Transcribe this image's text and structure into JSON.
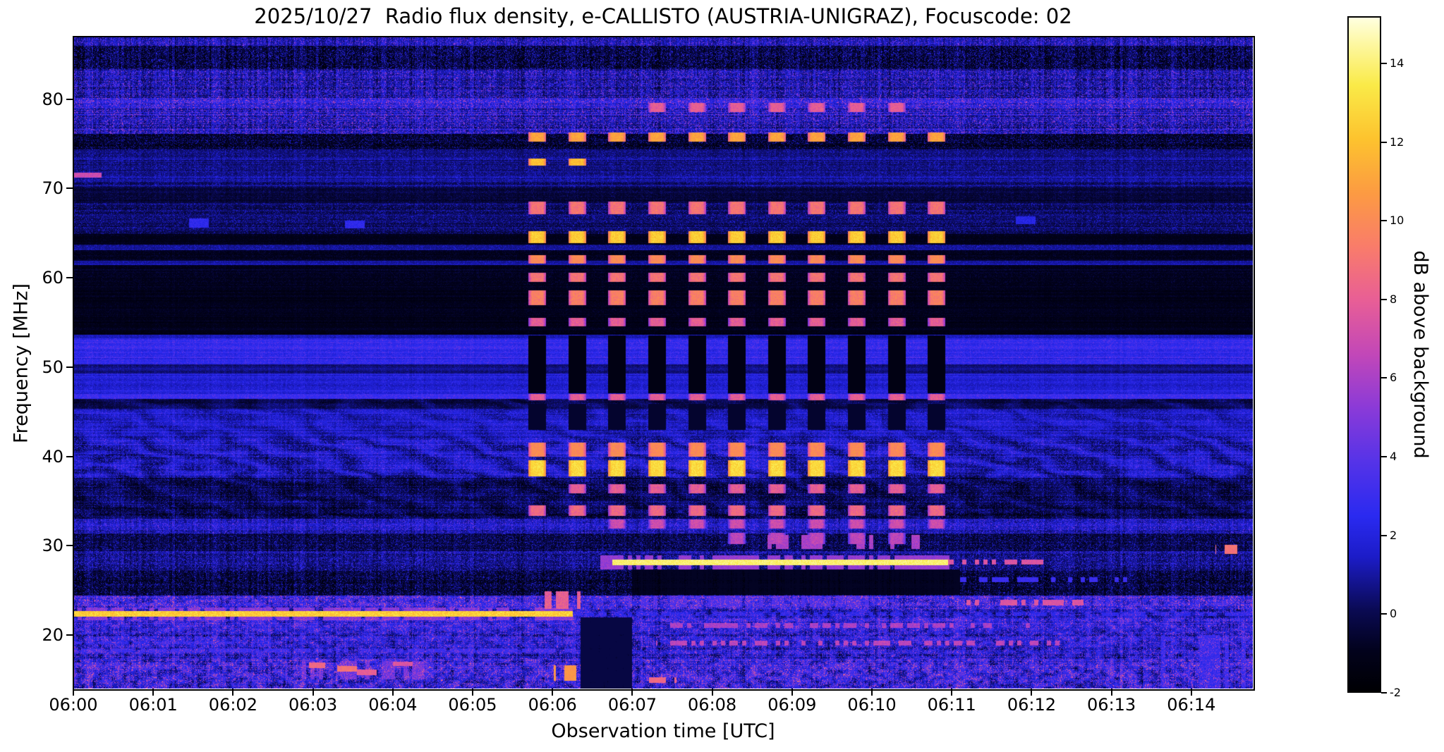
{
  "chart_data": {
    "type": "heatmap",
    "title": "2025/10/27  Radio flux density, e-CALLISTO (AUSTRIA-UNIGRAZ), Focuscode: 02",
    "xlabel": "Observation time [UTC]",
    "ylabel": "Frequency [MHz]",
    "x_tick_labels": [
      "06:00",
      "06:01",
      "06:02",
      "06:03",
      "06:04",
      "06:05",
      "06:06",
      "06:07",
      "06:08",
      "06:09",
      "06:10",
      "06:11",
      "06:12",
      "06:13",
      "06:14"
    ],
    "y_tick_values": [
      20,
      30,
      40,
      50,
      60,
      70,
      80
    ],
    "x_range_minutes_after_0600": [
      0,
      14.77
    ],
    "y_range_mhz": [
      14,
      87
    ],
    "grid": false,
    "colorbar": {
      "label": "dB above background",
      "ticks": [
        -2,
        0,
        2,
        4,
        6,
        8,
        10,
        12,
        14
      ],
      "range": [
        -2,
        15.2
      ],
      "stops": [
        {
          "v": 0.0,
          "color": "#000003"
        },
        {
          "v": 0.06,
          "color": "#02021c"
        },
        {
          "v": 0.12,
          "color": "#0a0a52"
        },
        {
          "v": 0.2,
          "color": "#1c1cc8"
        },
        {
          "v": 0.26,
          "color": "#2a2af0"
        },
        {
          "v": 0.34,
          "color": "#5533e8"
        },
        {
          "v": 0.42,
          "color": "#8a3ad8"
        },
        {
          "v": 0.5,
          "color": "#c247b8"
        },
        {
          "v": 0.58,
          "color": "#e85e96"
        },
        {
          "v": 0.66,
          "color": "#f97c6a"
        },
        {
          "v": 0.74,
          "color": "#fc9b42"
        },
        {
          "v": 0.82,
          "color": "#fdc32e"
        },
        {
          "v": 0.9,
          "color": "#faea48"
        },
        {
          "v": 0.96,
          "color": "#fdf7a0"
        },
        {
          "v": 1.0,
          "color": "#ffffe0"
        }
      ]
    },
    "band_fields": "f_low_MHz, f_high_MHz, level_dB, speckle_amp, row_structure, column_structure",
    "background_bands": [
      [
        86.0,
        87.0,
        0.8,
        2.0,
        0.4,
        0.8
      ],
      [
        83.4,
        86.0,
        -0.8,
        1.6,
        0.3,
        0.9
      ],
      [
        80.1,
        83.4,
        0.5,
        2.2,
        0.5,
        0.9
      ],
      [
        79.6,
        80.1,
        1.8,
        2.5,
        0.3,
        0.6
      ],
      [
        76.1,
        79.6,
        0.9,
        2.4,
        0.7,
        0.7
      ],
      [
        74.4,
        76.1,
        -1.1,
        1.2,
        0.3,
        0.3
      ],
      [
        70.1,
        74.4,
        0.35,
        0.8,
        0.5,
        0.3
      ],
      [
        68.4,
        70.1,
        -0.6,
        0.5,
        0.3,
        0.2
      ],
      [
        64.9,
        68.4,
        -0.1,
        0.9,
        0.4,
        0.2
      ],
      [
        63.7,
        64.9,
        -1.2,
        0.3,
        0.2,
        0.1
      ],
      [
        63.1,
        63.7,
        0.6,
        0.6,
        0.3,
        0.1
      ],
      [
        61.9,
        63.1,
        -1.1,
        0.4,
        0.3,
        0.1
      ],
      [
        61.4,
        61.9,
        0.9,
        0.5,
        0.3,
        0.1
      ],
      [
        59.2,
        61.4,
        -1.1,
        0.4,
        0.3,
        0.1
      ],
      [
        53.6,
        59.2,
        -1.2,
        0.3,
        0.25,
        0.1
      ],
      [
        53.2,
        53.6,
        1.2,
        0.5,
        0.2,
        0.2
      ],
      [
        50.3,
        53.2,
        2.3,
        0.8,
        0.5,
        0.25
      ],
      [
        49.3,
        50.3,
        0.4,
        0.4,
        0.3,
        0.2
      ],
      [
        47.0,
        49.3,
        1.7,
        0.7,
        0.6,
        0.25
      ],
      [
        46.4,
        47.0,
        2.6,
        0.8,
        0.3,
        0.2
      ],
      [
        45.3,
        46.4,
        -0.2,
        0.5,
        0.3,
        0.2
      ],
      [
        42.0,
        45.3,
        1.1,
        1.0,
        0.5,
        0.3
      ],
      [
        37.6,
        42.0,
        0.8,
        1.3,
        0.5,
        0.45
      ],
      [
        33.0,
        37.6,
        -0.35,
        1.0,
        0.5,
        0.45
      ],
      [
        31.4,
        33.0,
        1.0,
        1.6,
        0.4,
        0.6
      ],
      [
        29.4,
        31.4,
        -0.6,
        1.2,
        0.3,
        0.5
      ],
      [
        27.2,
        29.4,
        0.2,
        1.5,
        0.4,
        0.6
      ],
      [
        24.4,
        27.2,
        -0.9,
        1.3,
        0.3,
        0.7
      ],
      [
        22.8,
        24.4,
        1.6,
        2.6,
        0.6,
        0.8
      ],
      [
        21.9,
        22.8,
        0.8,
        1.8,
        0.4,
        0.7
      ],
      [
        20.2,
        21.9,
        1.4,
        2.2,
        0.5,
        0.8
      ],
      [
        17.2,
        20.2,
        1.1,
        2.2,
        0.6,
        0.85
      ],
      [
        14.0,
        17.2,
        1.3,
        2.6,
        0.5,
        0.9
      ]
    ],
    "events": [
      {
        "name": "fixed-line-22MHz",
        "t0": 0,
        "t1": 6.25,
        "f0": 22.05,
        "f1": 22.68,
        "level": 12.5,
        "jitter": 2.5
      },
      {
        "name": "line-22MHz-halo",
        "t0": 0,
        "t1": 6.25,
        "f0": 21.65,
        "f1": 23.05,
        "level": 5.0,
        "gate": 0.25,
        "jitter": 2
      },
      {
        "name": "line-22MHz-after",
        "t0": 6.25,
        "t1": 14.77,
        "f0": 22.1,
        "f1": 22.5,
        "level": 2.4,
        "gate": 0.4
      },
      {
        "name": "burst-line-28MHz",
        "t0": 6.75,
        "t1": 10.95,
        "f0": 27.85,
        "f1": 28.45,
        "level": 14.0,
        "jitter": 1.2
      },
      {
        "name": "line-28MHz-halo",
        "t0": 6.6,
        "t1": 11.05,
        "f0": 27.35,
        "f1": 28.95,
        "level": 5.5,
        "gate": 0.3
      },
      {
        "name": "line-28MHz-tail",
        "t0": 10.95,
        "t1": 12.15,
        "f0": 27.9,
        "f1": 28.45,
        "level": 7.5,
        "gate": 0.45
      },
      {
        "name": "patch-24MHz-0606",
        "t0": 5.9,
        "t1": 6.35,
        "f0": 22.9,
        "f1": 24.9,
        "level": 8.0,
        "gate": 0.3,
        "jitter": 2
      },
      {
        "name": "stripe-30MHz",
        "t0": 8.65,
        "t1": 10.75,
        "f0": 29.6,
        "f1": 31.2,
        "level": 6.0,
        "gate": 0.5,
        "jitter": 1.6
      },
      {
        "name": "stripe-23.5MHz",
        "t0": 6.9,
        "t1": 10.1,
        "f0": 23.1,
        "f1": 24.4,
        "level": 3.4,
        "gate": 0.45
      },
      {
        "name": "dashes-21MHz",
        "t0": 7.3,
        "t1": 12.1,
        "f0": 20.8,
        "f1": 21.35,
        "level": 6.0,
        "gate": 0.55,
        "jitter": 1.6
      },
      {
        "name": "dashes-19MHz",
        "t0": 7.3,
        "t1": 12.4,
        "f0": 18.8,
        "f1": 19.4,
        "level": 6.5,
        "gate": 0.55,
        "jitter": 1.6
      },
      {
        "name": "dashes-23.5MHz-late",
        "t0": 11.15,
        "t1": 12.65,
        "f0": 23.3,
        "f1": 23.95,
        "level": 7.5,
        "gate": 0.5
      },
      {
        "name": "line-71.5MHz-start",
        "t0": 0,
        "t1": 0.35,
        "f0": 71.2,
        "f1": 71.8,
        "level": 7.0,
        "gate": 0.15
      },
      {
        "name": "hf-noise-cluster",
        "t0": 2.8,
        "t1": 4.45,
        "f0": 15.0,
        "f1": 17.1,
        "level": 4.5,
        "gate": 0.5,
        "jitter": 3
      },
      {
        "name": "hf-spot-a",
        "t0": 2.95,
        "t1": 3.15,
        "f0": 16.3,
        "f1": 16.9,
        "level": 8.5
      },
      {
        "name": "hf-spot-b",
        "t0": 3.3,
        "t1": 3.55,
        "f0": 15.9,
        "f1": 16.5,
        "level": 9.0
      },
      {
        "name": "hf-spot-c",
        "t0": 3.55,
        "t1": 3.8,
        "f0": 15.5,
        "f1": 16.1,
        "level": 8.0
      },
      {
        "name": "hf-spot-d",
        "t0": 4.0,
        "t1": 4.25,
        "f0": 16.5,
        "f1": 17.0,
        "level": 7.5
      },
      {
        "name": "bright-spot-0606",
        "t0": 6.02,
        "t1": 6.3,
        "f0": 14.9,
        "f1": 16.6,
        "level": 10.5,
        "gate": 0.15,
        "jitter": 1.5
      },
      {
        "name": "bottom-dash-0607",
        "t0": 7.2,
        "t1": 7.55,
        "f0": 14.6,
        "f1": 15.3,
        "level": 8.5,
        "gate": 0.2
      },
      {
        "name": "dash-29.5MHz-right",
        "t0": 14.3,
        "t1": 14.62,
        "f0": 29.1,
        "f1": 30.1,
        "level": 9.0,
        "gate": 0.15
      },
      {
        "name": "blob-66MHz-a",
        "t0": 1.45,
        "t1": 1.7,
        "f0": 65.6,
        "f1": 66.6,
        "level": 2.6
      },
      {
        "name": "blob-66MHz-b",
        "t0": 3.4,
        "t1": 3.65,
        "f0": 65.5,
        "f1": 66.4,
        "level": 2.6
      },
      {
        "name": "blob-66MHz-c",
        "t0": 11.8,
        "t1": 12.05,
        "f0": 66.0,
        "f1": 66.9,
        "level": 2.2
      },
      {
        "name": "line-18.3MHz-left",
        "t0": 0,
        "t1": 6.3,
        "f0": 18.05,
        "f1": 18.5,
        "level": 3.0,
        "gate": 0.25
      },
      {
        "name": "line-19MHz-left",
        "t0": 0,
        "t1": 2.6,
        "f0": 18.95,
        "f1": 19.3,
        "level": 2.4,
        "gate": 0.3
      },
      {
        "name": "right-bottom-speckle",
        "t0": 13.4,
        "t1": 14.77,
        "f0": 14.0,
        "f1": 20.0,
        "level": 2.8,
        "gate": 0.6,
        "jitter": 1.6
      },
      {
        "name": "dashes-26MHz-late",
        "t0": 11.0,
        "t1": 13.3,
        "f0": 25.9,
        "f1": 26.5,
        "level": 3.0,
        "gate": 0.65
      },
      {
        "name": "dark-under-28MHz",
        "t0": 7.0,
        "t1": 11.1,
        "f0": 24.5,
        "f1": 27.3,
        "level": -0.8,
        "mode": "min"
      },
      {
        "name": "post-0606-dim",
        "t0": 6.35,
        "t1": 7.0,
        "f0": 14.0,
        "f1": 22.0,
        "level": -0.2,
        "mode": "min"
      }
    ],
    "burst_train": {
      "t_start": 5.7,
      "period_min": 0.5,
      "on_width_min": 0.22,
      "columns": 11,
      "segment_fields": "f_low_MHz, f_high_MHz, level_dB, first_column, last_column",
      "segments": [
        [
          78.55,
          79.55,
          8.0,
          3,
          9
        ],
        [
          75.25,
          76.25,
          11.0,
          0,
          10
        ],
        [
          72.55,
          73.35,
          12.0,
          0,
          1
        ],
        [
          67.15,
          68.55,
          9.0,
          0,
          10
        ],
        [
          63.85,
          65.25,
          12.5,
          0,
          10
        ],
        [
          61.55,
          62.55,
          10.0,
          0,
          10
        ],
        [
          59.55,
          60.55,
          9.0,
          0,
          10
        ],
        [
          56.95,
          58.55,
          9.5,
          0,
          10
        ],
        [
          54.55,
          55.55,
          8.0,
          0,
          10
        ],
        [
          46.25,
          46.95,
          8.0,
          0,
          10
        ],
        [
          39.95,
          41.55,
          10.0,
          0,
          10
        ],
        [
          37.75,
          39.55,
          13.0,
          0,
          10
        ],
        [
          35.85,
          36.85,
          8.0,
          1,
          10
        ],
        [
          33.35,
          34.55,
          8.5,
          0,
          10
        ],
        [
          31.95,
          32.95,
          7.0,
          2,
          10
        ],
        [
          30.15,
          31.45,
          6.5,
          5,
          9
        ]
      ],
      "dark_segments": [
        [
          47.1,
          53.5,
          -1.3,
          0,
          10
        ],
        [
          43.0,
          45.9,
          -0.6,
          0,
          10
        ]
      ]
    }
  }
}
